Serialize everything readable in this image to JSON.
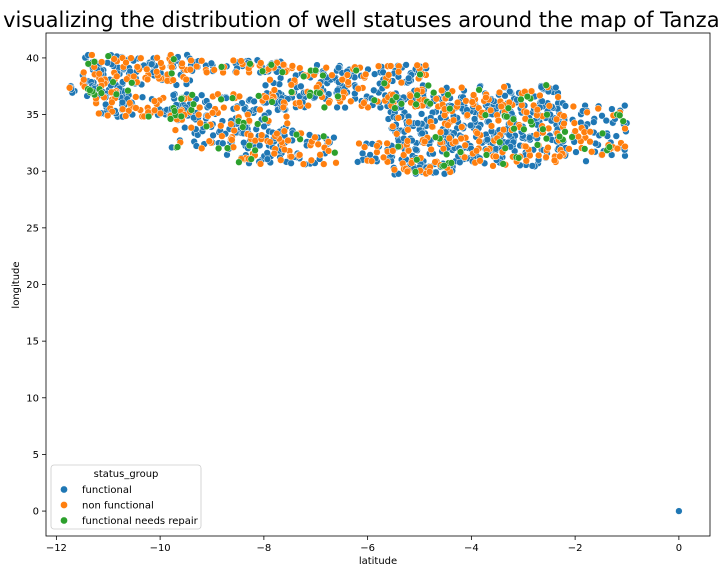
{
  "chart_data": {
    "type": "scatter",
    "title": "Scatterplot visualizing the distribution of well statuses around the map of Tanzania",
    "xlabel": "latitude",
    "ylabel": "longitude",
    "xlim": [
      -12.2,
      0.6
    ],
    "ylim": [
      -2.2,
      42.2
    ],
    "xticks": [
      -12,
      -10,
      -8,
      -6,
      -4,
      -2,
      0
    ],
    "yticks": [
      0,
      5,
      10,
      15,
      20,
      25,
      30,
      35,
      40
    ],
    "grid": false,
    "legend": {
      "title": "status_group",
      "position": "lower-left"
    },
    "series": [
      {
        "name": "functional",
        "color": "#1f77b4"
      },
      {
        "name": "non functional",
        "color": "#ff7f0e"
      },
      {
        "name": "functional needs repair",
        "color": "#2ca02c"
      }
    ],
    "clusters": [
      {
        "x": [
          -11.5,
          -9.4
        ],
        "y": [
          37.6,
          40.3
        ],
        "mix": [
          0.52,
          0.44,
          0.04
        ],
        "n": 150
      },
      {
        "x": [
          -9.5,
          -7.6
        ],
        "y": [
          38.6,
          39.8
        ],
        "mix": [
          0.55,
          0.4,
          0.05
        ],
        "n": 60
      },
      {
        "x": [
          -11.8,
          -10.6
        ],
        "y": [
          36.5,
          37.6
        ],
        "mix": [
          0.65,
          0.15,
          0.2
        ],
        "n": 40
      },
      {
        "x": [
          -11.3,
          -9.3
        ],
        "y": [
          34.8,
          36.6
        ],
        "mix": [
          0.58,
          0.37,
          0.05
        ],
        "n": 90
      },
      {
        "x": [
          -9.8,
          -7.5
        ],
        "y": [
          32.0,
          36.8
        ],
        "mix": [
          0.62,
          0.28,
          0.1
        ],
        "n": 180
      },
      {
        "x": [
          -8.8,
          -6.6
        ],
        "y": [
          30.6,
          33.6
        ],
        "mix": [
          0.55,
          0.4,
          0.05
        ],
        "n": 110
      },
      {
        "x": [
          -8.0,
          -4.8
        ],
        "y": [
          35.6,
          39.4
        ],
        "mix": [
          0.55,
          0.38,
          0.07
        ],
        "n": 260
      },
      {
        "x": [
          -6.2,
          -5.0
        ],
        "y": [
          30.8,
          32.5
        ],
        "mix": [
          0.58,
          0.38,
          0.04
        ],
        "n": 40
      },
      {
        "x": [
          -5.6,
          -3.0
        ],
        "y": [
          31.0,
          37.0
        ],
        "mix": [
          0.62,
          0.3,
          0.08
        ],
        "n": 280
      },
      {
        "x": [
          -5.5,
          -4.3
        ],
        "y": [
          29.7,
          30.9
        ],
        "mix": [
          0.55,
          0.35,
          0.1
        ],
        "n": 50
      },
      {
        "x": [
          -4.6,
          -2.2
        ],
        "y": [
          30.4,
          37.6
        ],
        "mix": [
          0.6,
          0.32,
          0.08
        ],
        "n": 230
      },
      {
        "x": [
          -3.0,
          -1.0
        ],
        "y": [
          30.8,
          35.8
        ],
        "mix": [
          0.55,
          0.38,
          0.07
        ],
        "n": 140
      }
    ],
    "outliers": [
      {
        "x": 0.0,
        "y": 0.0,
        "series": 0
      }
    ]
  }
}
